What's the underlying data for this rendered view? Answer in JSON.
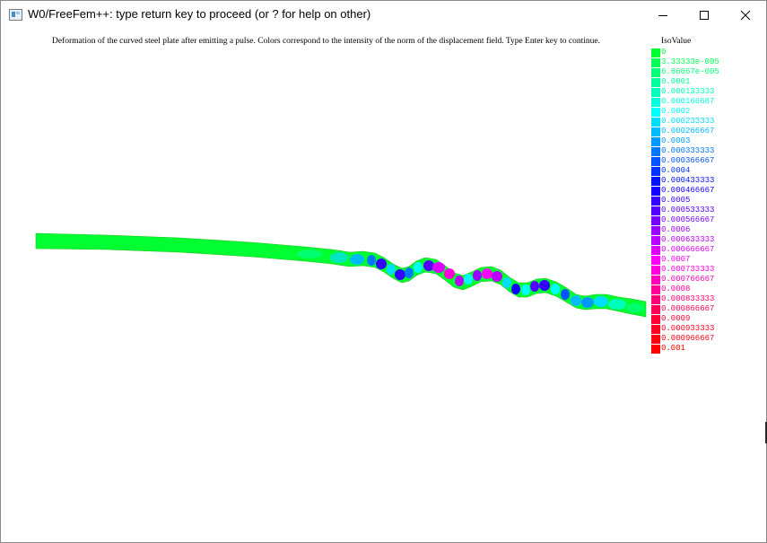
{
  "window": {
    "title": "W0/FreeFem++: type return key to proceed (or ? for help on other)",
    "controls": [
      "minimize",
      "maximize",
      "close"
    ]
  },
  "plot": {
    "caption": "Deformation of the curved steel plate after emitting a pulse. Colors correspond to the intensity of the norm of the displacement field. Type Enter key to continue.",
    "legend_title": "IsoValue",
    "legend": [
      {
        "label": "0",
        "color": "#00ff30"
      },
      {
        "label": "3.33333e-005",
        "color": "#00ff55"
      },
      {
        "label": "6.66667e-005",
        "color": "#00ff77"
      },
      {
        "label": "0.0001",
        "color": "#00ff99"
      },
      {
        "label": "0.000133333",
        "color": "#00ffbb"
      },
      {
        "label": "0.000166667",
        "color": "#00ffdd"
      },
      {
        "label": "0.0002",
        "color": "#00ffff"
      },
      {
        "label": "0.000233333",
        "color": "#00ddff"
      },
      {
        "label": "0.000266667",
        "color": "#00bbff"
      },
      {
        "label": "0.0003",
        "color": "#0099ff"
      },
      {
        "label": "0.000333333",
        "color": "#0077ff"
      },
      {
        "label": "0.000366667",
        "color": "#0055ff"
      },
      {
        "label": "0.0004",
        "color": "#0033ff"
      },
      {
        "label": "0.000433333",
        "color": "#0011ff"
      },
      {
        "label": "0.000466667",
        "color": "#1100ff"
      },
      {
        "label": "0.0005",
        "color": "#3300ff"
      },
      {
        "label": "0.000533333",
        "color": "#5500ff"
      },
      {
        "label": "0.000566667",
        "color": "#7700ff"
      },
      {
        "label": "0.0006",
        "color": "#9900ff"
      },
      {
        "label": "0.000633333",
        "color": "#bb00ff"
      },
      {
        "label": "0.000666667",
        "color": "#dd00ff"
      },
      {
        "label": "0.0007",
        "color": "#ff00ff"
      },
      {
        "label": "0.000733333",
        "color": "#ff00dd"
      },
      {
        "label": "0.000766667",
        "color": "#ff00bb"
      },
      {
        "label": "0.0008",
        "color": "#ff0099"
      },
      {
        "label": "0.000833333",
        "color": "#ff0077"
      },
      {
        "label": "0.000866667",
        "color": "#ff0055"
      },
      {
        "label": "0.0009",
        "color": "#ff0033"
      },
      {
        "label": "0.000933333",
        "color": "#ff0022"
      },
      {
        "label": "0.000966667",
        "color": "#ff0011"
      },
      {
        "label": "0.001",
        "color": "#ff0000"
      }
    ]
  }
}
